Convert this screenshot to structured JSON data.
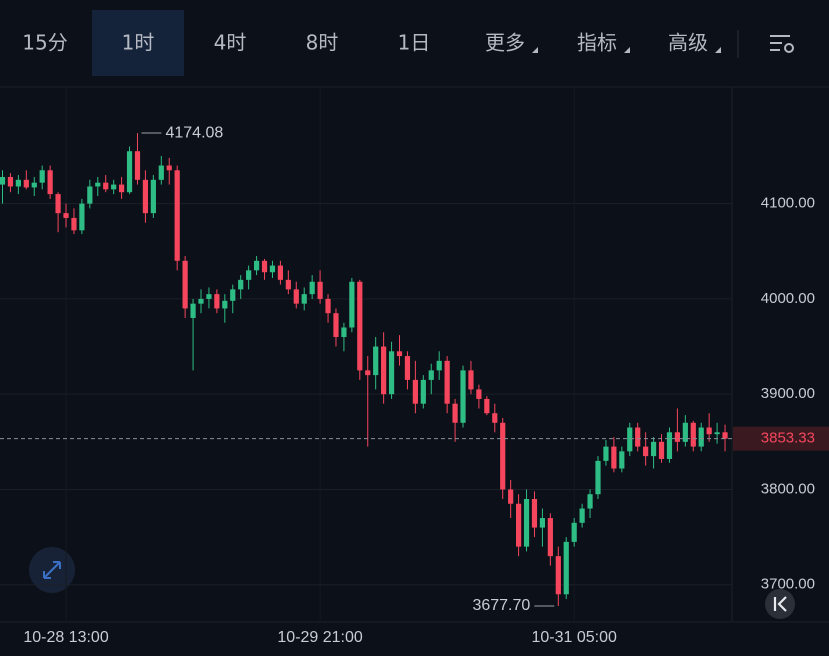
{
  "toolbar": {
    "tabs": [
      "15分",
      "1时",
      "4时",
      "8时",
      "1日",
      "更多",
      "指标",
      "高级"
    ],
    "active_tab": 1
  },
  "chart_data": {
    "type": "candlestick",
    "categories": [
      null,
      null,
      null,
      null,
      null,
      null,
      null,
      null,
      "10-28 13:00",
      null,
      null,
      null,
      null,
      null,
      null,
      null,
      null,
      null,
      null,
      null,
      null,
      null,
      null,
      null,
      null,
      null,
      null,
      null,
      null,
      null,
      null,
      null,
      null,
      null,
      null,
      null,
      null,
      null,
      null,
      null,
      "10-29 21:00",
      null,
      null,
      null,
      null,
      null,
      null,
      null,
      null,
      null,
      null,
      null,
      null,
      null,
      null,
      null,
      null,
      null,
      null,
      null,
      null,
      null,
      null,
      null,
      null,
      null,
      null,
      null,
      null,
      null,
      null,
      null,
      "10-31 05:00",
      null,
      null,
      null,
      null,
      null,
      null,
      null,
      null,
      null,
      null,
      null,
      null,
      null,
      null,
      null,
      null,
      null,
      null,
      null
    ],
    "open": [
      4120,
      4128,
      4118,
      4125,
      4117,
      4122,
      4135,
      4110,
      4090,
      4085,
      4072,
      4100,
      4118,
      4122,
      4115,
      4120,
      4112,
      4155,
      4125,
      4090,
      4125,
      4140,
      4135,
      4040,
      3980,
      3995,
      4000,
      4005,
      3990,
      3998,
      4010,
      4020,
      4030,
      4040,
      4028,
      4035,
      4020,
      4010,
      3995,
      4005,
      4018,
      4000,
      3985,
      3960,
      3970,
      4018,
      3925,
      3920,
      3950,
      3900,
      3945,
      3940,
      3915,
      3890,
      3915,
      3925,
      3935,
      3890,
      3870,
      3925,
      3905,
      3895,
      3880,
      3870,
      3800,
      3785,
      3740,
      3790,
      3760,
      3770,
      3730,
      3690,
      3745,
      3765,
      3780,
      3795,
      3830,
      3845,
      3822,
      3840,
      3865,
      3845,
      3835,
      3850,
      3832,
      3860,
      3850,
      3870,
      3845,
      3865,
      3858,
      3860
    ],
    "high": [
      4135,
      4132,
      4130,
      4135,
      4128,
      4140,
      4140,
      4112,
      4100,
      4095,
      4105,
      4125,
      4128,
      4130,
      4125,
      4128,
      4160,
      4174.08,
      4135,
      4130,
      4150,
      4148,
      4140,
      4045,
      4000,
      4010,
      4012,
      4010,
      4005,
      4015,
      4025,
      4035,
      4045,
      4042,
      4040,
      4040,
      4030,
      4018,
      4012,
      4025,
      4030,
      4005,
      3990,
      3975,
      4022,
      4020,
      3940,
      3960,
      3965,
      3955,
      3962,
      3945,
      3935,
      3920,
      3932,
      3945,
      3940,
      3895,
      3930,
      3935,
      3910,
      3898,
      3890,
      3875,
      3810,
      3795,
      3800,
      3798,
      3780,
      3775,
      3740,
      3750,
      3770,
      3785,
      3800,
      3835,
      3852,
      3855,
      3845,
      3870,
      3870,
      3860,
      3855,
      3858,
      3865,
      3885,
      3878,
      3872,
      3870,
      3880,
      3870,
      3868
    ],
    "low": [
      4100,
      4112,
      4110,
      4115,
      4108,
      4115,
      4105,
      4070,
      4075,
      4068,
      4068,
      4095,
      4108,
      4112,
      4110,
      4105,
      4110,
      4120,
      4080,
      4085,
      4120,
      4120,
      4030,
      3980,
      3925,
      3985,
      3990,
      3985,
      3975,
      3985,
      4000,
      4010,
      4025,
      4020,
      4022,
      4015,
      4005,
      3990,
      3988,
      4000,
      3995,
      3975,
      3950,
      3945,
      3965,
      3915,
      3845,
      3905,
      3890,
      3895,
      3930,
      3905,
      3880,
      3885,
      3900,
      3915,
      3880,
      3850,
      3865,
      3900,
      3885,
      3878,
      3860,
      3790,
      3770,
      3730,
      3735,
      3750,
      3740,
      3720,
      3677.7,
      3685,
      3740,
      3760,
      3770,
      3790,
      3825,
      3818,
      3818,
      3835,
      3840,
      3825,
      3822,
      3828,
      3828,
      3840,
      3845,
      3840,
      3840,
      3850,
      3848,
      3840
    ],
    "close": [
      4128,
      4118,
      4125,
      4117,
      4122,
      4135,
      4110,
      4090,
      4085,
      4072,
      4100,
      4118,
      4122,
      4115,
      4120,
      4112,
      4155,
      4125,
      4090,
      4125,
      4140,
      4135,
      4040,
      3990,
      3995,
      4000,
      4005,
      3990,
      3998,
      4010,
      4020,
      4030,
      4040,
      4028,
      4035,
      4020,
      4010,
      3995,
      4005,
      4018,
      4000,
      3985,
      3960,
      3970,
      4018,
      3925,
      3920,
      3950,
      3900,
      3945,
      3940,
      3915,
      3890,
      3915,
      3925,
      3935,
      3890,
      3870,
      3925,
      3905,
      3895,
      3880,
      3870,
      3800,
      3785,
      3740,
      3790,
      3760,
      3770,
      3730,
      3690,
      3745,
      3765,
      3780,
      3795,
      3830,
      3845,
      3822,
      3840,
      3865,
      3845,
      3835,
      3850,
      3832,
      3860,
      3850,
      3870,
      3845,
      3865,
      3858,
      3860,
      3853.33
    ],
    "up_color": "#2ebd85",
    "down_color": "#f6465d",
    "ylim": [
      3663,
      4235
    ],
    "yticks": [
      {
        "value": 3700,
        "label": "3700.00"
      },
      {
        "value": 3800,
        "label": "3800.00"
      },
      {
        "value": 3900,
        "label": "3900.00"
      },
      {
        "value": 4000,
        "label": "4000.00"
      },
      {
        "value": 4100,
        "label": "4100.00"
      }
    ],
    "grid": true,
    "last_price": 3853.33,
    "annotations": [
      {
        "value": 4174.08,
        "label": "4174.08"
      },
      {
        "value": 3677.7,
        "label": "3677.70"
      }
    ]
  }
}
